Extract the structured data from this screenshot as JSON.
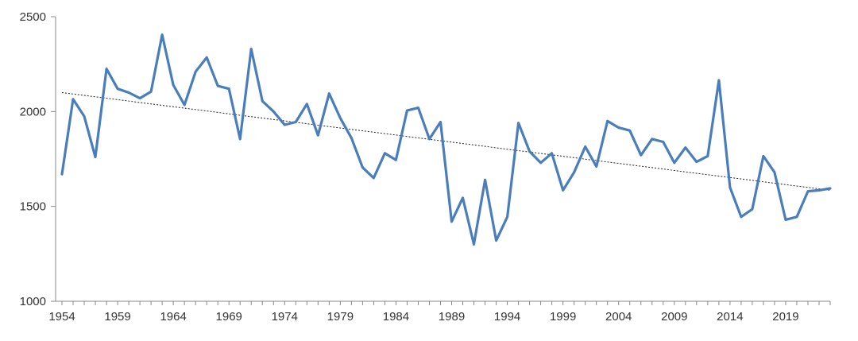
{
  "chart_data": {
    "type": "line",
    "title": "",
    "xlabel": "",
    "ylabel": "",
    "xlim": [
      1954,
      2023
    ],
    "ylim": [
      1000,
      2500
    ],
    "y_ticks": [
      1000,
      1500,
      2000,
      2500
    ],
    "x_ticks": [
      1954,
      1959,
      1964,
      1969,
      1974,
      1979,
      1984,
      1989,
      1994,
      1999,
      2004,
      2009,
      2014,
      2019
    ],
    "grid": false,
    "legend": "none",
    "colors": {
      "series": "#4a7ebb",
      "trend": "#222222",
      "axis": "#888888"
    },
    "series": [
      {
        "x": [
          1954,
          1955,
          1956,
          1957,
          1958,
          1959,
          1960,
          1961,
          1962,
          1963,
          1964,
          1965,
          1966,
          1967,
          1968,
          1969,
          1970,
          1971,
          1972,
          1973,
          1974,
          1975,
          1976,
          1977,
          1978,
          1979,
          1980,
          1981,
          1982,
          1983,
          1984,
          1985,
          1986,
          1987,
          1988,
          1989,
          1990,
          1991,
          1992,
          1993,
          1994,
          1995,
          1996,
          1997,
          1998,
          1999,
          2000,
          2001,
          2002,
          2003,
          2004,
          2005,
          2006,
          2007,
          2008,
          2009,
          2010,
          2011,
          2012,
          2013,
          2014,
          2015,
          2016,
          2017,
          2018,
          2019,
          2020,
          2021,
          2022,
          2023
        ],
        "values": [
          1670,
          2065,
          1975,
          1760,
          2225,
          2120,
          2100,
          2070,
          2105,
          2405,
          2140,
          2035,
          2210,
          2285,
          2135,
          2120,
          1855,
          2330,
          2055,
          2000,
          1930,
          1945,
          2040,
          1875,
          2095,
          1965,
          1860,
          1705,
          1650,
          1780,
          1745,
          2005,
          2020,
          1855,
          1945,
          1420,
          1545,
          1300,
          1640,
          1320,
          1445,
          1940,
          1790,
          1730,
          1780,
          1585,
          1680,
          1815,
          1710,
          1950,
          1915,
          1900,
          1770,
          1855,
          1840,
          1730,
          1810,
          1735,
          1765,
          2165,
          1600,
          1445,
          1485,
          1765,
          1680,
          1430,
          1445,
          1580,
          1585,
          1595
        ]
      }
    ],
    "trendline": {
      "x": [
        1954,
        2023
      ],
      "values": [
        2100,
        1585
      ]
    }
  }
}
